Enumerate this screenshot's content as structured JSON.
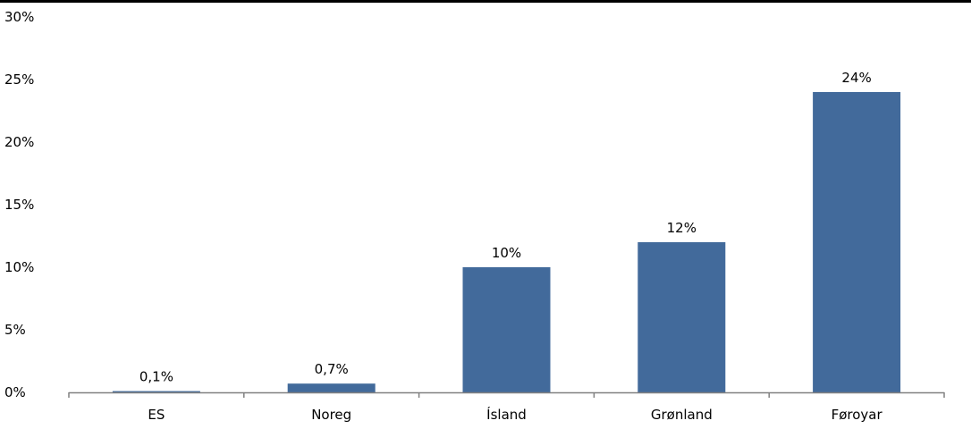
{
  "chart_data": {
    "type": "bar",
    "categories": [
      "ES",
      "Noreg",
      "Ísland",
      "Grønland",
      "Føroyar"
    ],
    "values": [
      0.1,
      0.7,
      10,
      12,
      24
    ],
    "data_labels": [
      "0,1%",
      "0,7%",
      "10%",
      "12%",
      "24%"
    ],
    "y_ticks": [
      0,
      5,
      10,
      15,
      20,
      25,
      30
    ],
    "y_tick_labels": [
      "0%",
      "5%",
      "10%",
      "15%",
      "20%",
      "25%",
      "30%"
    ],
    "ylim": [
      0,
      30
    ],
    "title": "",
    "xlabel": "",
    "ylabel": "",
    "grid": false,
    "legend": "none",
    "colors": {
      "bar": "#426a9b",
      "axis": "#808080",
      "text": "#000000",
      "top_rule": "#000000"
    }
  }
}
